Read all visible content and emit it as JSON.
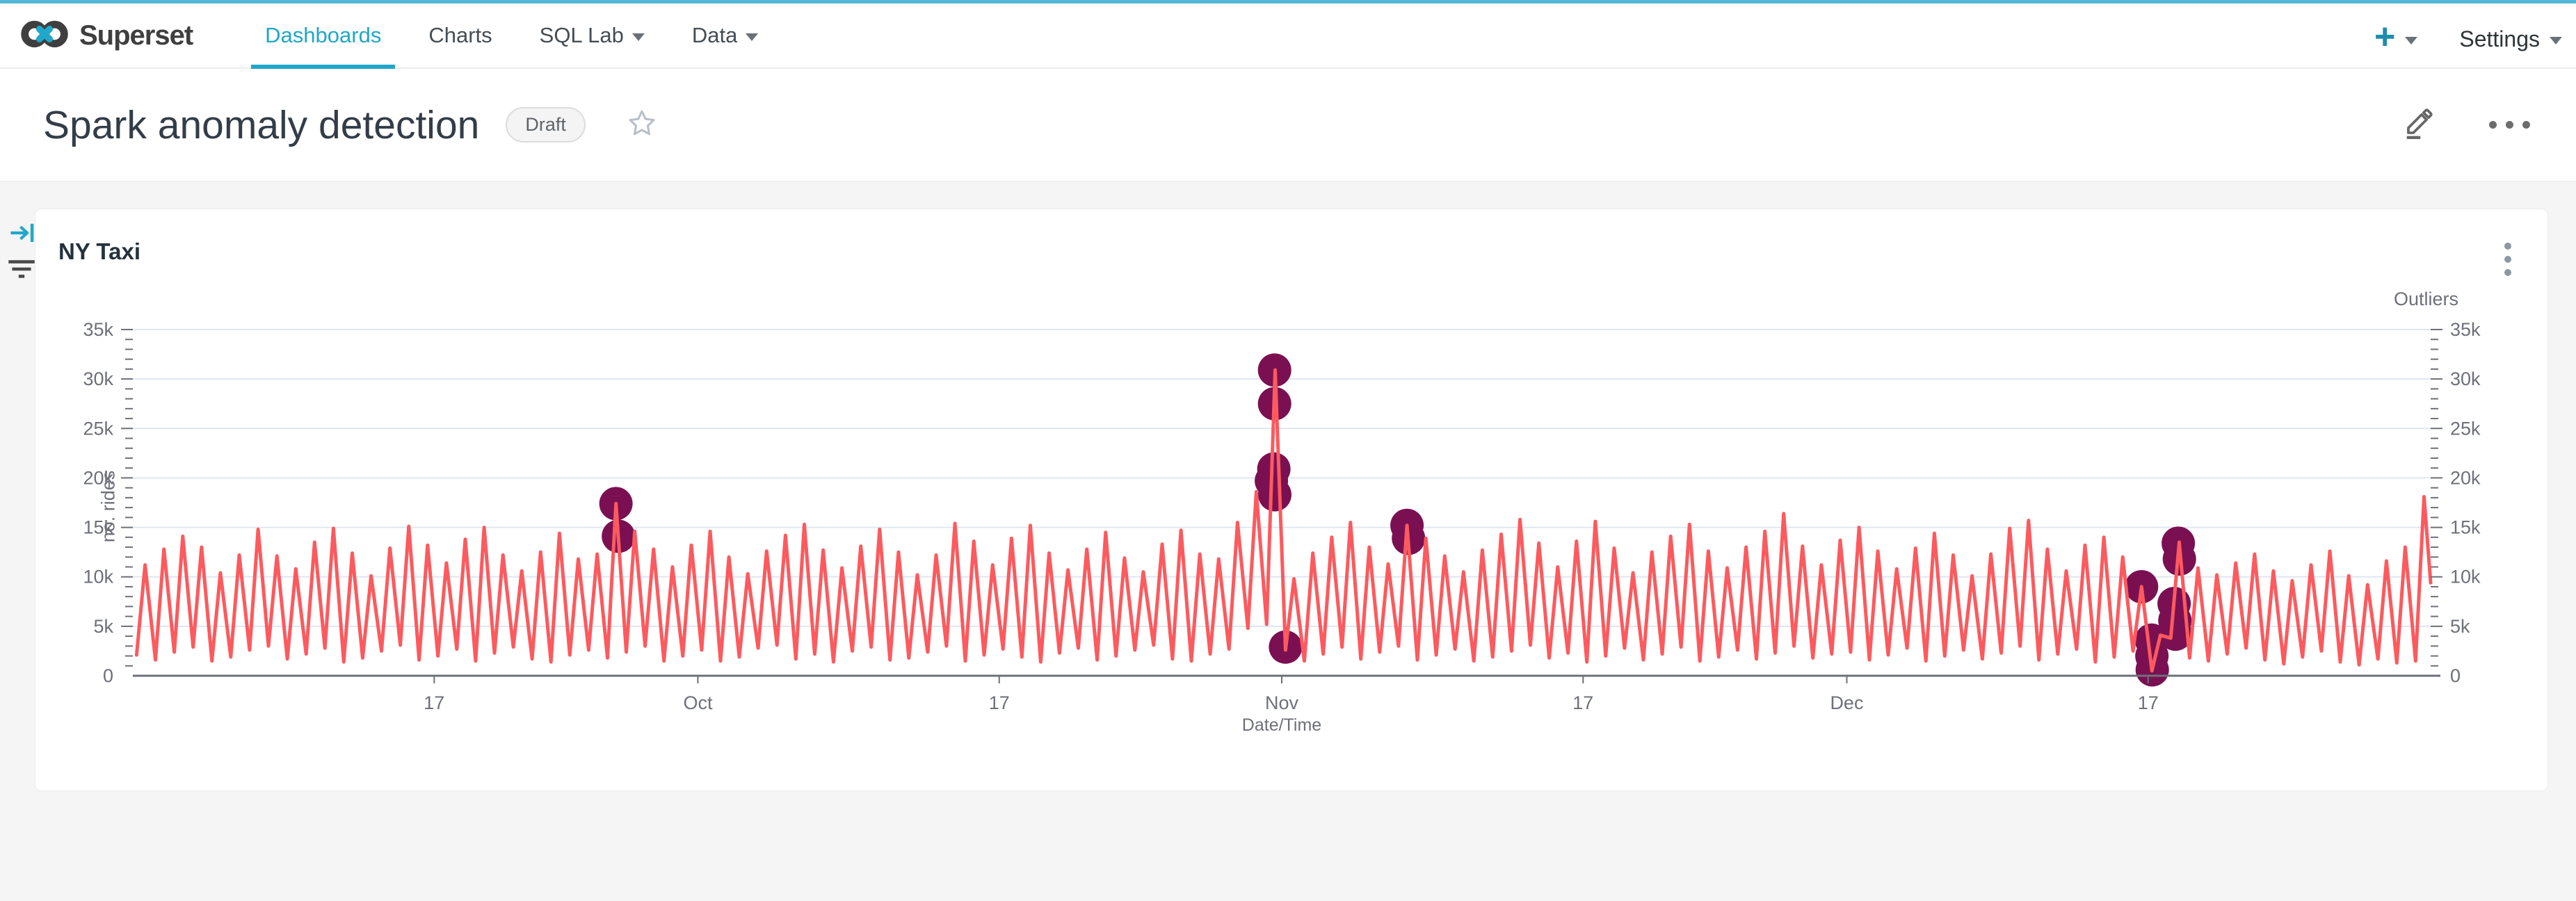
{
  "navbar": {
    "brand": "Superset",
    "items": [
      {
        "label": "Dashboards",
        "active": true
      },
      {
        "label": "Charts",
        "active": false
      },
      {
        "label": "SQL Lab",
        "active": false
      },
      {
        "label": "Data",
        "active": false
      }
    ],
    "plus_label": "+",
    "settings_label": "Settings"
  },
  "page": {
    "title": "Spark anomaly detection",
    "status_badge": "Draft"
  },
  "chart_card": {
    "title": "NY Taxi"
  },
  "colors": {
    "primary": "#20a7c9",
    "line": "#fc5a5e",
    "outlier": "#7a1052",
    "grid": "#E0E6F1",
    "axis": "#6E7079",
    "background": "#f5f5f5"
  },
  "chart_data": {
    "type": "line",
    "title": "NY Taxi",
    "xlabel": "Date/Time",
    "ylabel_left": "no. rides",
    "ylabel_right": "Outliers",
    "ylim": [
      0,
      35000
    ],
    "y_tick_labels": [
      "0",
      "5k",
      "10k",
      "15k",
      "20k",
      "25k",
      "30k",
      "35k"
    ],
    "x_tick_labels": [
      "17",
      "Oct",
      "17",
      "Nov",
      "17",
      "Dec",
      "17"
    ],
    "x_tick_days": [
      16,
      30,
      46,
      61,
      77,
      91,
      107
    ],
    "x_range_days": 122,
    "x_start_date": "Sep 1",
    "units": "thousands of rides",
    "grid": true,
    "legend": "none",
    "line_color": "#fc5a5e",
    "outlier_color": "#7a1052",
    "day_peaks": [
      11.2,
      12.8,
      14.1,
      13.0,
      10.4,
      12.2,
      14.8,
      12.1,
      10.8,
      13.5,
      14.9,
      12.4,
      10.1,
      12.9,
      15.1,
      13.2,
      11.4,
      13.8,
      15.0,
      12.2,
      10.6,
      12.5,
      14.4,
      11.8,
      12.3,
      17.4,
      14.6,
      12.8,
      11.0,
      13.2,
      14.6,
      12.0,
      10.3,
      12.6,
      14.2,
      15.3,
      12.7,
      10.9,
      13.1,
      14.8,
      12.5,
      10.2,
      12.2,
      15.4,
      13.6,
      11.2,
      13.9,
      15.2,
      12.4,
      10.7,
      12.8,
      14.5,
      11.9,
      10.5,
      13.3,
      14.7,
      12.3,
      11.8,
      15.5,
      18.6,
      30.9,
      9.8,
      12.4,
      14.0,
      15.5,
      13.0,
      11.3,
      15.2,
      13.9,
      12.1,
      10.5,
      12.7,
      14.3,
      15.8,
      13.4,
      11.0,
      13.6,
      15.6,
      12.9,
      10.4,
      12.5,
      14.1,
      15.3,
      12.6,
      10.9,
      13.0,
      14.6,
      16.4,
      13.1,
      11.2,
      13.7,
      15.0,
      12.6,
      10.8,
      12.9,
      14.4,
      12.2,
      10.1,
      12.3,
      14.9,
      15.7,
      12.8,
      10.6,
      13.2,
      14.0,
      12.0,
      9.0,
      4.1,
      13.5,
      10.9,
      10.2,
      11.4,
      12.3,
      10.6,
      9.6,
      11.2,
      12.6,
      10.1,
      9.2,
      11.6,
      13.0,
      18.1
    ],
    "day_troughs": [
      2.1,
      1.6,
      2.4,
      2.9,
      1.5,
      1.9,
      2.6,
      3.0,
      1.7,
      2.2,
      2.8,
      1.4,
      1.8,
      2.5,
      3.1,
      1.6,
      2.0,
      2.7,
      1.5,
      2.3,
      2.9,
      1.7,
      1.4,
      2.1,
      2.6,
      1.8,
      2.4,
      3.0,
      1.5,
      2.0,
      2.6,
      1.5,
      1.9,
      2.8,
      3.1,
      1.7,
      2.2,
      1.4,
      2.5,
      2.9,
      1.6,
      1.8,
      2.4,
      3.0,
      1.5,
      2.1,
      2.7,
      1.9,
      1.4,
      2.3,
      2.8,
      1.6,
      2.0,
      2.6,
      3.1,
      1.7,
      1.5,
      2.2,
      2.7,
      4.8,
      5.2,
      2.6,
      1.5,
      2.2,
      2.9,
      1.7,
      2.4,
      3.0,
      1.6,
      2.1,
      2.7,
      1.5,
      1.9,
      2.5,
      3.1,
      1.8,
      2.3,
      1.4,
      2.0,
      2.8,
      1.6,
      2.2,
      2.9,
      1.5,
      1.9,
      2.6,
      1.7,
      2.3,
      3.0,
      1.8,
      2.2,
      2.4,
      1.6,
      2.1,
      2.8,
      1.5,
      2.0,
      2.6,
      1.7,
      2.3,
      3.0,
      1.6,
      2.2,
      2.7,
      1.4,
      1.9,
      2.5,
      0.5,
      3.8,
      1.8,
      1.5,
      2.2,
      2.8,
      1.6,
      1.2,
      1.9,
      2.5,
      1.4,
      1.1,
      1.7,
      1.3,
      1.5
    ],
    "end_value_k": 9.4,
    "outliers": [
      {
        "day": 25.65,
        "value_k": 17.4
      },
      {
        "day": 25.78,
        "value_k": 14.1
      },
      {
        "day": 60.62,
        "value_k": 30.9
      },
      {
        "day": 60.62,
        "value_k": 27.5
      },
      {
        "day": 60.58,
        "value_k": 20.9
      },
      {
        "day": 60.45,
        "value_k": 19.7
      },
      {
        "day": 60.63,
        "value_k": 18.3
      },
      {
        "day": 61.2,
        "value_k": 2.9
      },
      {
        "day": 67.65,
        "value_k": 15.2
      },
      {
        "day": 67.73,
        "value_k": 13.9
      },
      {
        "day": 106.65,
        "value_k": 9.0
      },
      {
        "day": 107.18,
        "value_k": 3.6
      },
      {
        "day": 107.2,
        "value_k": 2.0
      },
      {
        "day": 107.22,
        "value_k": 0.6
      },
      {
        "day": 108.6,
        "value_k": 13.4
      },
      {
        "day": 108.66,
        "value_k": 11.8
      },
      {
        "day": 108.38,
        "value_k": 7.3
      },
      {
        "day": 108.42,
        "value_k": 5.6
      },
      {
        "day": 108.45,
        "value_k": 4.2
      }
    ]
  }
}
